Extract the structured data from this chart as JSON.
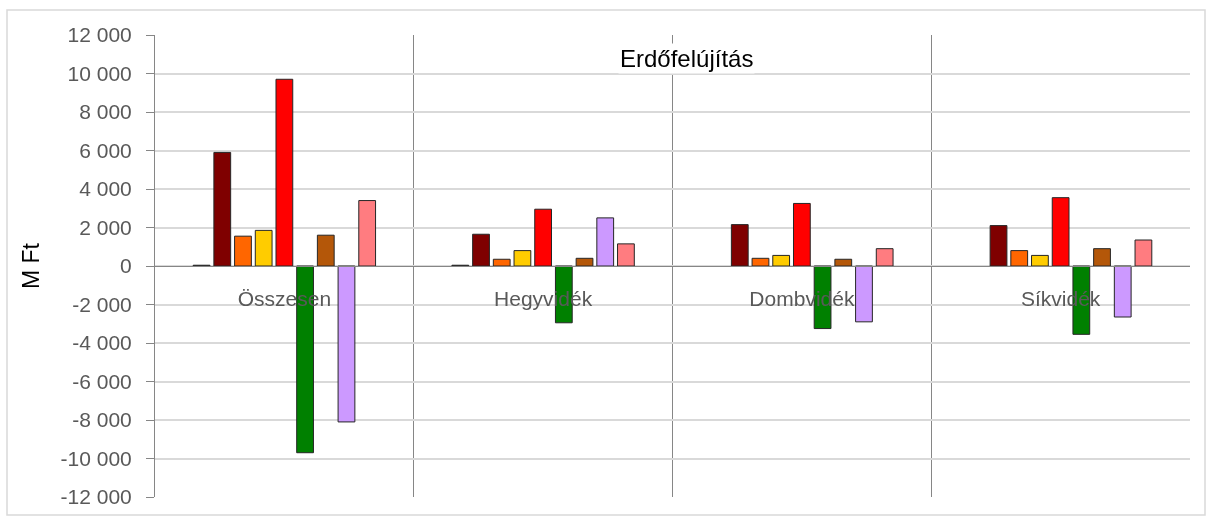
{
  "chart_data": {
    "type": "bar",
    "title": "Erdőfelújítás",
    "ylabel": "M Ft",
    "categories": [
      "Összesen",
      "Hegyvidék",
      "Dombvidék",
      "Síkvidék"
    ],
    "series": [
      {
        "color": "#404040",
        "values": [
          40,
          40,
          null,
          null
        ]
      },
      {
        "color": "#7f0000",
        "values": [
          5900,
          1650,
          2150,
          2100
        ]
      },
      {
        "color": "#ff6600",
        "values": [
          1550,
          350,
          400,
          800
        ]
      },
      {
        "color": "#ffcc00",
        "values": [
          1850,
          800,
          550,
          550
        ]
      },
      {
        "color": "#ff0000",
        "values": [
          9700,
          2950,
          3250,
          3550
        ]
      },
      {
        "color": "#008000",
        "values": [
          -9700,
          -2950,
          -3250,
          -3550
        ]
      },
      {
        "color": "#b45709",
        "values": [
          1600,
          400,
          350,
          900
        ]
      },
      {
        "color": "#cc99ff",
        "values": [
          -8100,
          2500,
          -2900,
          -2650
        ]
      },
      {
        "color": "#ff7c80",
        "values": [
          3400,
          1150,
          900,
          1350
        ]
      }
    ],
    "ylim": [
      -12000,
      12000
    ],
    "yticks": [
      {
        "value": -12000,
        "label": "-12 000"
      },
      {
        "value": -10000,
        "label": "-10 000"
      },
      {
        "value": -8000,
        "label": "-8 000"
      },
      {
        "value": -6000,
        "label": "-6 000"
      },
      {
        "value": -4000,
        "label": "-4 000"
      },
      {
        "value": -2000,
        "label": "-2 000"
      },
      0,
      {
        "value": 2000,
        "label": "2 000"
      },
      {
        "value": 4000,
        "label": "4 000"
      },
      {
        "value": 6000,
        "label": "6 000"
      },
      {
        "value": 8000,
        "label": "8 000"
      },
      {
        "value": 10000,
        "label": "10 000"
      },
      {
        "value": 12000,
        "label": "12 000"
      }
    ],
    "grid": true
  }
}
